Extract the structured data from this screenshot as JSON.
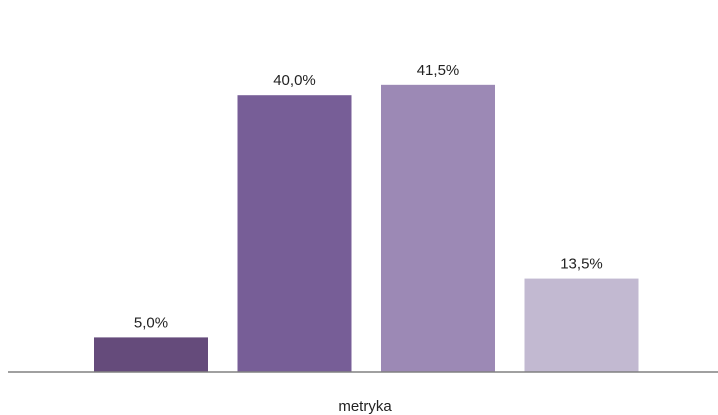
{
  "chart_data": {
    "type": "bar",
    "categories": [
      "metryka"
    ],
    "series": [
      {
        "values": [
          5.0
        ],
        "color": "#654B7B"
      },
      {
        "values": [
          40.0
        ],
        "color": "#775E97"
      },
      {
        "values": [
          41.5
        ],
        "color": "#9C89B5"
      },
      {
        "values": [
          13.5
        ],
        "color": "#C2B9D1"
      }
    ],
    "data_labels": [
      "5,0%",
      "40,0%",
      "41,5%",
      "13,5%"
    ],
    "ylim": [
      0,
      50
    ],
    "grid": false,
    "legend": "none",
    "axis_color": "#808080"
  }
}
